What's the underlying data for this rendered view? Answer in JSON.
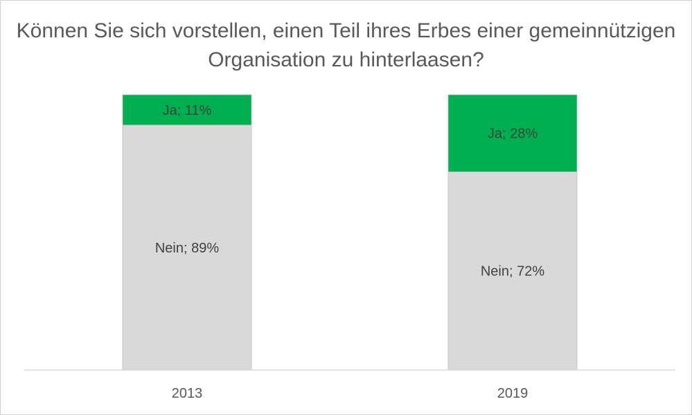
{
  "chart_data": {
    "type": "bar",
    "stacked": true,
    "percent_stacked": true,
    "title": "Können Sie sich vorstellen, einen Teil ihres Erbes einer gemeinnützigen Organisation zu hinterlaasen?",
    "categories": [
      "2013",
      "2019"
    ],
    "series": [
      {
        "name": "Nein",
        "values": [
          89,
          72
        ],
        "color": "#d9d9d9",
        "labels": [
          "Nein; 89%",
          "Nein; 72%"
        ]
      },
      {
        "name": "Ja",
        "values": [
          11,
          28
        ],
        "color": "#00b050",
        "labels": [
          "Ja; 11%",
          "Ja; 28%"
        ]
      }
    ],
    "ylim": [
      0,
      100
    ],
    "grid": false,
    "legend": "none"
  }
}
